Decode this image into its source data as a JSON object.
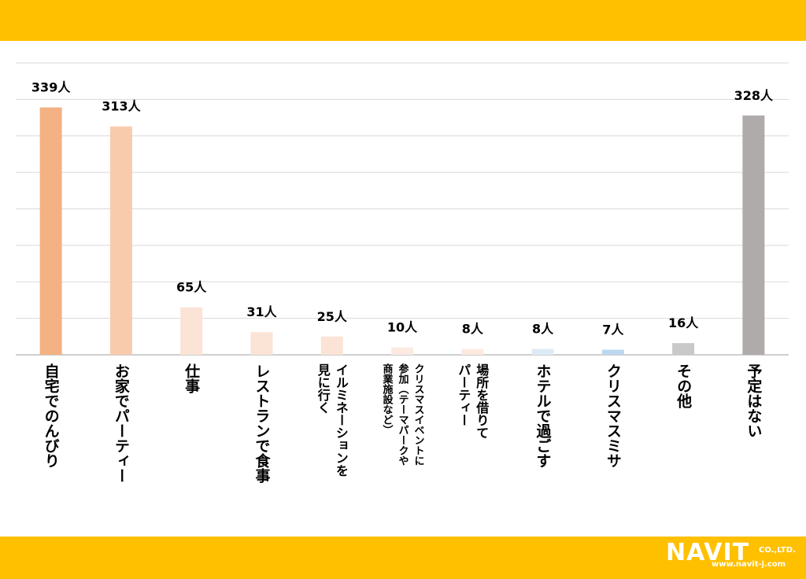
{
  "brand": {
    "top_band_color": "#FFC000",
    "bottom_band_color": "#FFC000",
    "logo_text": "NAVIT",
    "logo_suffix": "CO.,LTD.",
    "logo_url": "www.navit-j.com"
  },
  "chart_data": {
    "type": "bar",
    "title": "",
    "xlabel": "",
    "ylabel": "",
    "ylim": [
      0,
      400
    ],
    "grid": true,
    "legend": "none",
    "categories": [
      "自宅でのんびり",
      "お家でパーティー",
      "仕事",
      "レストランで食事",
      "イルミネーションを見に行く",
      "クリスマスイベントに参加（テーマパークや商業施設など）",
      "場所を借りてパーティー",
      "ホテルで過ごす",
      "クリスマスミサ",
      "その他",
      "予定はない"
    ],
    "category_lines": [
      [
        "自宅でのんびり"
      ],
      [
        "お家でパーティー"
      ],
      [
        "仕事"
      ],
      [
        "レストランで食事"
      ],
      [
        "イルミネーションを",
        "見に行く"
      ],
      [
        "クリスマスイベントに",
        "参加（テーマパークや",
        "商業施設など）"
      ],
      [
        "場所を借りて",
        "パーティー"
      ],
      [
        "ホテルで過ごす"
      ],
      [
        "クリスマスミサ"
      ],
      [
        "その他"
      ],
      [
        "予定はない"
      ]
    ],
    "values": [
      339,
      313,
      65,
      31,
      25,
      10,
      8,
      8,
      7,
      16,
      328
    ],
    "value_labels": [
      "339人",
      "313人",
      "65人",
      "31人",
      "25人",
      "10人",
      "8人",
      "8人",
      "7人",
      "16人",
      "328人"
    ],
    "colors": [
      "#F4B183",
      "#F8CBAD",
      "#FBE3D6",
      "#FBE3D6",
      "#FBE3D6",
      "#FCEAE1",
      "#FCEAE1",
      "#DEEBF7",
      "#BDD7EE",
      "#C9C9C9",
      "#AFABAB"
    ]
  }
}
